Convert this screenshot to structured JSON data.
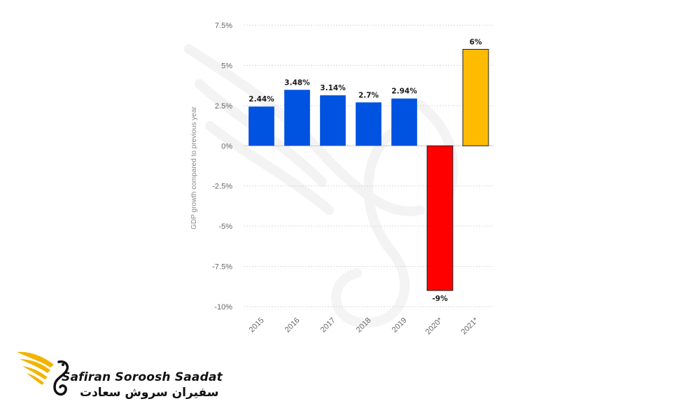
{
  "chart_data": {
    "type": "bar",
    "categories": [
      "2015",
      "2016",
      "2017",
      "2018",
      "2019",
      "2020*",
      "2021*"
    ],
    "values": [
      2.44,
      3.48,
      3.14,
      2.7,
      2.94,
      -9,
      6
    ],
    "value_labels": [
      "2.44%",
      "3.48%",
      "3.14%",
      "2.7%",
      "2.94%",
      "-9%",
      "6%"
    ],
    "bar_colors": [
      "#0052e0",
      "#0052e0",
      "#0052e0",
      "#0052e0",
      "#0052e0",
      "#ff0000",
      "#ffbb00"
    ],
    "ylabel": "GDP growth compared to previous year",
    "ylim": [
      -10,
      7.5
    ],
    "yticks": [
      7.5,
      5,
      2.5,
      0,
      -2.5,
      -5,
      -7.5,
      -10
    ],
    "ytick_labels": [
      "7.5%",
      "5%",
      "2.5%",
      "0%",
      "-2.5%",
      "-5%",
      "-7.5%",
      "-10%"
    ],
    "grid": true
  },
  "brand": {
    "name_en": "Safiran Soroosh Saadat",
    "name_fa": "سفیران سروش سعادت",
    "accent_color": "#f2b400"
  }
}
